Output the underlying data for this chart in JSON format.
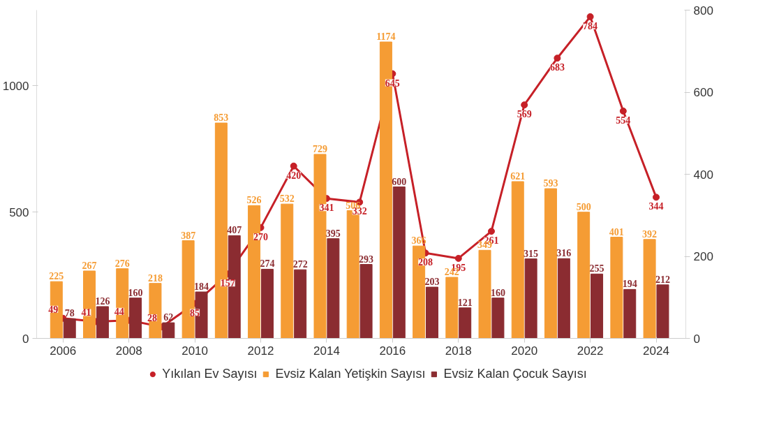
{
  "chart_data": {
    "type": "bar",
    "x": [
      2006,
      2007,
      2008,
      2009,
      2010,
      2011,
      2012,
      2013,
      2014,
      2015,
      2016,
      2017,
      2018,
      2019,
      2020,
      2021,
      2022,
      2023,
      2024
    ],
    "xlim": [
      2005.2,
      2024.9
    ],
    "xticks": [
      2006,
      2008,
      2010,
      2012,
      2014,
      2016,
      2018,
      2020,
      2022,
      2024
    ],
    "ylim": [
      0,
      1300
    ],
    "yticks": [
      0,
      500,
      1000
    ],
    "y2lim": [
      0,
      800
    ],
    "y2ticks": [
      0,
      200,
      400,
      600,
      800
    ],
    "series": [
      {
        "name": "Yıkılan Ev Sayısı",
        "type": "line",
        "axis": "y2",
        "color": "#c62027",
        "marker": "circle",
        "values": [
          49,
          41,
          44,
          28,
          85,
          157,
          270,
          420,
          341,
          332,
          645,
          208,
          195,
          261,
          569,
          683,
          784,
          554,
          344
        ]
      },
      {
        "name": "Evsiz Kalan Yetişkin Sayısı",
        "color": "#f59c34",
        "values": [
          225,
          267,
          276,
          218,
          387,
          853,
          526,
          532,
          729,
          506,
          1174,
          366,
          242,
          349,
          621,
          593,
          500,
          401,
          392
        ]
      },
      {
        "name": "Evsiz Kalan Çocuk Sayısı",
        "color": "#8b2c31",
        "values": [
          78,
          126,
          160,
          62,
          184,
          407,
          274,
          272,
          395,
          293,
          600,
          203,
          121,
          160,
          315,
          316,
          255,
          194,
          212
        ]
      }
    ],
    "data_labels": true,
    "grid": false,
    "legend": "bottom",
    "line_style": "solid"
  }
}
